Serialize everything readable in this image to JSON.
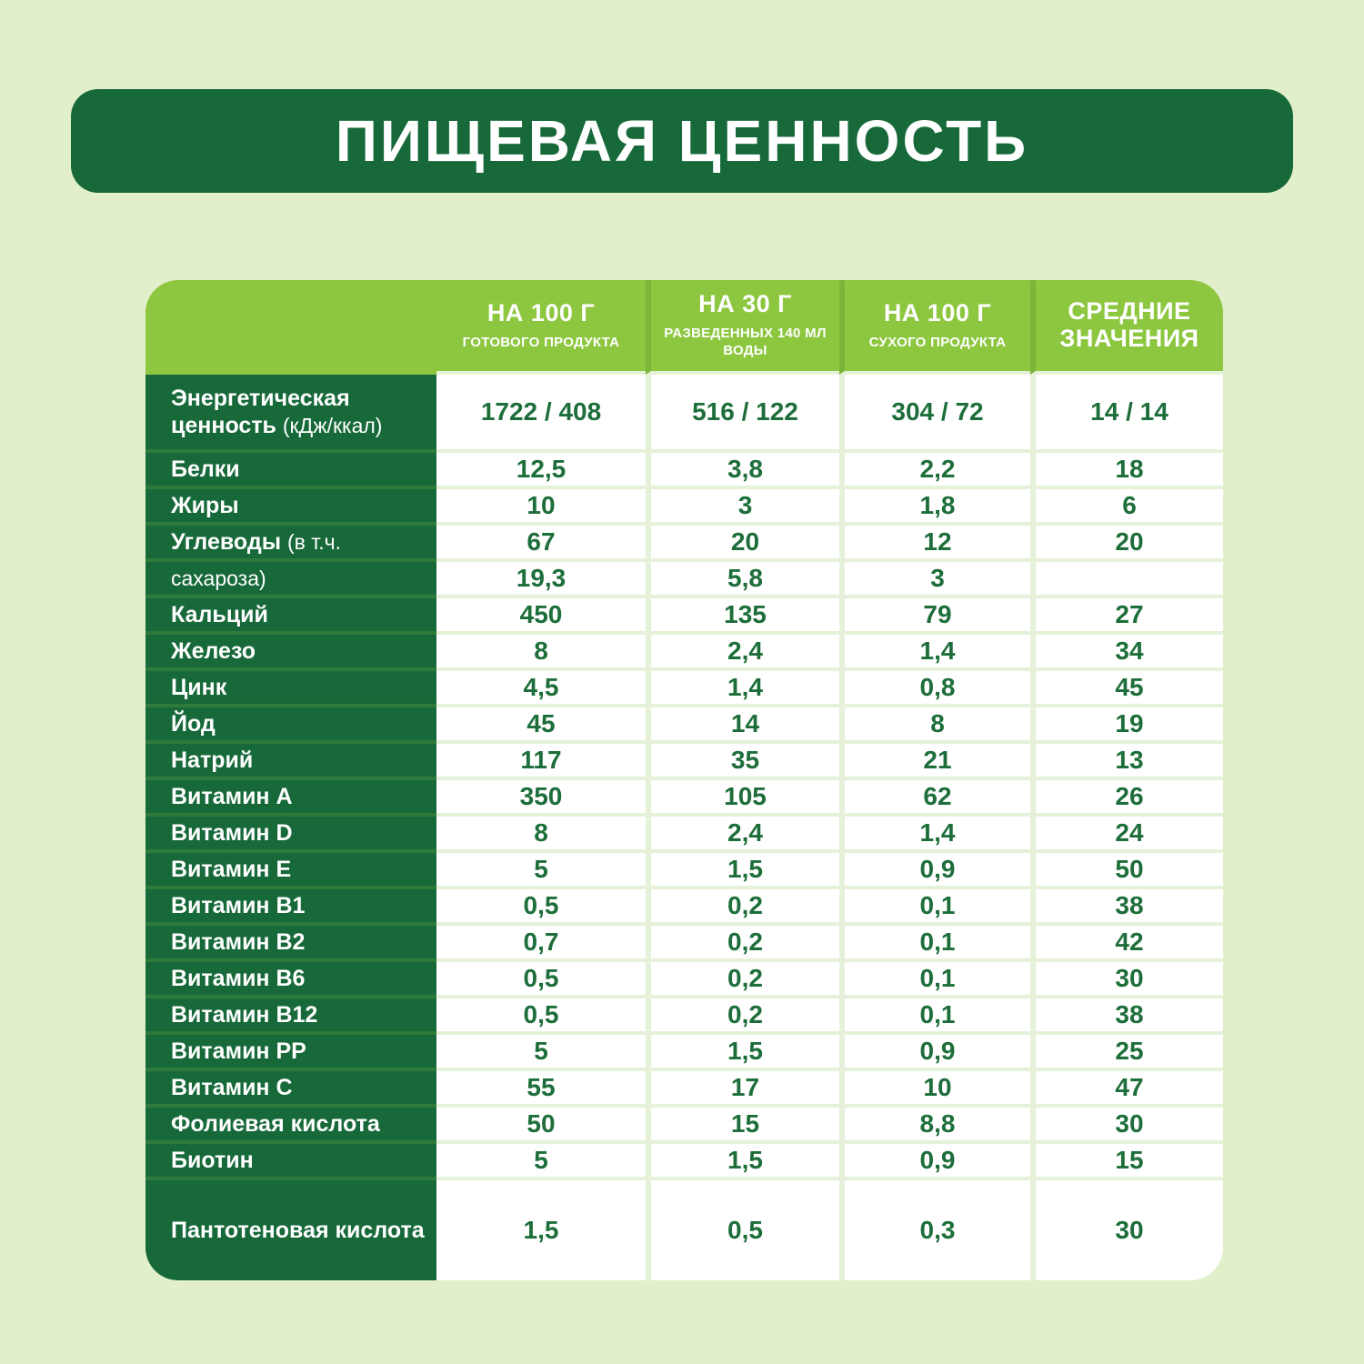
{
  "header": {
    "title": "ПИЩЕВАЯ ЦЕННОСТЬ"
  },
  "colors": {
    "page_bg": "#e1efca",
    "dark_green": "#17693a",
    "bright_green": "#8dc63f",
    "value_text": "#1d6e3a",
    "cell_gap": "#e5f1d9"
  },
  "chart_data": {
    "type": "table",
    "title": "ПИЩЕВАЯ ЦЕННОСТЬ",
    "columns": [
      {
        "title": "НА 100 Г",
        "subtitle": "ГОТОВОГО ПРОДУКТА"
      },
      {
        "title": "НА 30 Г",
        "subtitle": "РАЗВЕДЕННЫХ 140 МЛ ВОДЫ"
      },
      {
        "title": "НА 100 Г",
        "subtitle": "СУХОГО ПРОДУКТА"
      },
      {
        "title": "СРЕДНИЕ ЗНАЧЕНИЯ",
        "subtitle": ""
      }
    ],
    "rows": [
      {
        "label_bold": "Энергетическая ценность",
        "label_regular": "(кДж/ккал)",
        "values": [
          "1722 / 408",
          "516 / 122",
          "304 / 72",
          "14 / 14"
        ]
      },
      {
        "label_bold": "Белки",
        "label_regular": "",
        "values": [
          "12,5",
          "3,8",
          "2,2",
          "18"
        ]
      },
      {
        "label_bold": "Жиры",
        "label_regular": "",
        "values": [
          "10",
          "3",
          "1,8",
          "6"
        ]
      },
      {
        "label_bold": "Углеводы",
        "label_regular": "(в т.ч.",
        "values": [
          "67",
          "20",
          "12",
          "20"
        ]
      },
      {
        "label_bold": "",
        "label_regular": "сахароза)",
        "values": [
          "19,3",
          "5,8",
          "3",
          ""
        ]
      },
      {
        "label_bold": "Кальций",
        "label_regular": "",
        "values": [
          "450",
          "135",
          "79",
          "27"
        ]
      },
      {
        "label_bold": "Железо",
        "label_regular": "",
        "values": [
          "8",
          "2,4",
          "1,4",
          "34"
        ]
      },
      {
        "label_bold": "Цинк",
        "label_regular": "",
        "values": [
          "4,5",
          "1,4",
          "0,8",
          "45"
        ]
      },
      {
        "label_bold": "Йод",
        "label_regular": "",
        "values": [
          "45",
          "14",
          "8",
          "19"
        ]
      },
      {
        "label_bold": "Натрий",
        "label_regular": "",
        "values": [
          "117",
          "35",
          "21",
          "13"
        ]
      },
      {
        "label_bold": "Витамин A",
        "label_regular": "",
        "values": [
          "350",
          "105",
          "62",
          "26"
        ]
      },
      {
        "label_bold": "Витамин D",
        "label_regular": "",
        "values": [
          "8",
          "2,4",
          "1,4",
          "24"
        ]
      },
      {
        "label_bold": "Витамин E",
        "label_regular": "",
        "values": [
          "5",
          "1,5",
          "0,9",
          "50"
        ]
      },
      {
        "label_bold": "Витамин B1",
        "label_regular": "",
        "values": [
          "0,5",
          "0,2",
          "0,1",
          "38"
        ]
      },
      {
        "label_bold": "Витамин B2",
        "label_regular": "",
        "values": [
          "0,7",
          "0,2",
          "0,1",
          "42"
        ]
      },
      {
        "label_bold": "Витамин B6",
        "label_regular": "",
        "values": [
          "0,5",
          "0,2",
          "0,1",
          "30"
        ]
      },
      {
        "label_bold": "Витамин B12",
        "label_regular": "",
        "values": [
          "0,5",
          "0,2",
          "0,1",
          "38"
        ]
      },
      {
        "label_bold": "Витамин PP",
        "label_regular": "",
        "values": [
          "5",
          "1,5",
          "0,9",
          "25"
        ]
      },
      {
        "label_bold": "Витамин C",
        "label_regular": "",
        "values": [
          "55",
          "17",
          "10",
          "47"
        ]
      },
      {
        "label_bold": "Фолиевая кислота",
        "label_regular": "",
        "values": [
          "50",
          "15",
          "8,8",
          "30"
        ]
      },
      {
        "label_bold": "Биотин",
        "label_regular": "",
        "values": [
          "5",
          "1,5",
          "0,9",
          "15"
        ]
      },
      {
        "label_bold": "Пантотеновая кислота",
        "label_regular": "",
        "values": [
          "1,5",
          "0,5",
          "0,3",
          "30"
        ]
      }
    ]
  }
}
